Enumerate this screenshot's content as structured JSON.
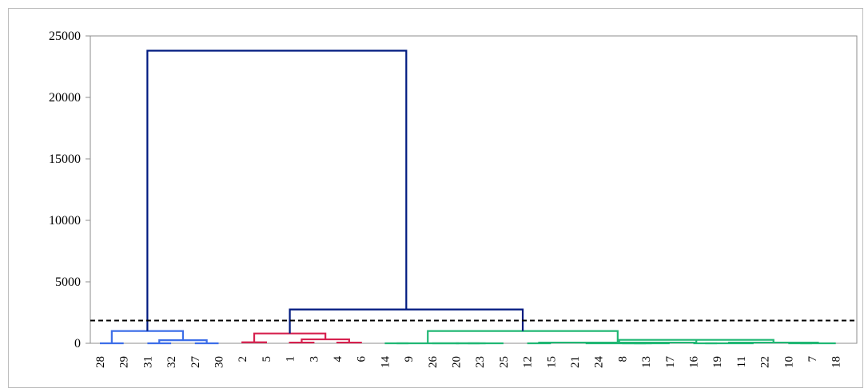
{
  "chart_data": {
    "type": "dendrogram",
    "title": "",
    "xlabel": "",
    "ylabel": "",
    "ylim": [
      0,
      25000
    ],
    "yticks": [
      0,
      5000,
      10000,
      15000,
      20000,
      25000
    ],
    "cut_height": 1850,
    "leaf_order": [
      "28",
      "29",
      "31",
      "32",
      "27",
      "30",
      "2",
      "5",
      "1",
      "3",
      "4",
      "6",
      "14",
      "9",
      "26",
      "20",
      "23",
      "25",
      "12",
      "15",
      "21",
      "24",
      "8",
      "13",
      "17",
      "16",
      "19",
      "11",
      "22",
      "10",
      "7",
      "18"
    ],
    "clusters": [
      {
        "color": "#3d6ee8",
        "leaves": [
          "28",
          "29",
          "31",
          "32",
          "27",
          "30"
        ]
      },
      {
        "color": "#d6204e",
        "leaves": [
          "2",
          "5",
          "1",
          "3",
          "4",
          "6"
        ]
      },
      {
        "color": "#20b774",
        "leaves": [
          "14",
          "9",
          "26",
          "20",
          "23",
          "25",
          "12",
          "15",
          "21",
          "24",
          "8",
          "13",
          "17",
          "16",
          "19",
          "11",
          "22",
          "10",
          "7",
          "18"
        ]
      }
    ],
    "merges": [
      {
        "left": "28",
        "right": "29",
        "height": 0,
        "color": "#3d6ee8"
      },
      {
        "left": "31",
        "right": "32",
        "height": 0,
        "color": "#3d6ee8"
      },
      {
        "left": "27",
        "right": "30",
        "height": 0,
        "color": "#3d6ee8"
      },
      {
        "left": "M1",
        "right": "M2",
        "height": 250,
        "color": "#3d6ee8"
      },
      {
        "left": "M0",
        "right": "M3",
        "height": 1000,
        "color": "#3d6ee8"
      },
      {
        "left": "2",
        "right": "5",
        "height": 80,
        "color": "#d6204e"
      },
      {
        "left": "1",
        "right": "3",
        "height": 60,
        "color": "#d6204e"
      },
      {
        "left": "4",
        "right": "6",
        "height": 60,
        "color": "#d6204e"
      },
      {
        "left": "M6",
        "right": "M7",
        "height": 320,
        "color": "#d6204e"
      },
      {
        "left": "M5",
        "right": "M8",
        "height": 800,
        "color": "#d6204e"
      },
      {
        "left": "14",
        "right": "9",
        "height": 0,
        "color": "#20b774"
      },
      {
        "left": "20",
        "right": "23",
        "height": 0,
        "color": "#20b774"
      },
      {
        "left": "M11",
        "right": "25",
        "height": 0,
        "color": "#20b774"
      },
      {
        "left": "26",
        "right": "M12",
        "height": 0,
        "color": "#20b774"
      },
      {
        "left": "M10",
        "right": "M13",
        "height": 0,
        "color": "#20b774"
      },
      {
        "left": "12",
        "right": "15",
        "height": 0,
        "color": "#20b774"
      },
      {
        "left": "21",
        "right": "24",
        "height": 60,
        "color": "#20b774"
      },
      {
        "left": "8",
        "right": "13",
        "height": 0,
        "color": "#20b774"
      },
      {
        "left": "M17",
        "right": "17",
        "height": 0,
        "color": "#20b774"
      },
      {
        "left": "M16",
        "right": "M18",
        "height": 0,
        "color": "#20b774"
      },
      {
        "left": "16",
        "right": "19",
        "height": 0,
        "color": "#20b774"
      },
      {
        "left": "11",
        "right": "22",
        "height": 60,
        "color": "#20b774"
      },
      {
        "left": "M20",
        "right": "M21",
        "height": 0,
        "color": "#20b774"
      },
      {
        "left": "10",
        "right": "7",
        "height": 0,
        "color": "#20b774"
      },
      {
        "left": "M23",
        "right": "18",
        "height": 0,
        "color": "#20b774"
      },
      {
        "left": "M22",
        "right": "M24",
        "height": 60,
        "color": "#20b774"
      },
      {
        "left": "M19",
        "right": "M25",
        "height": 280,
        "color": "#20b774"
      },
      {
        "left": "M15",
        "right": "M26",
        "height": 60,
        "color": "#20b774"
      },
      {
        "left": "M14",
        "right": "M27",
        "height": 1000,
        "color": "#20b774"
      },
      {
        "left": "M9",
        "right": "M28",
        "height": 2750,
        "color": "#001a80"
      },
      {
        "left": "M4",
        "right": "M29",
        "height": 23800,
        "color": "#001a80"
      }
    ]
  }
}
